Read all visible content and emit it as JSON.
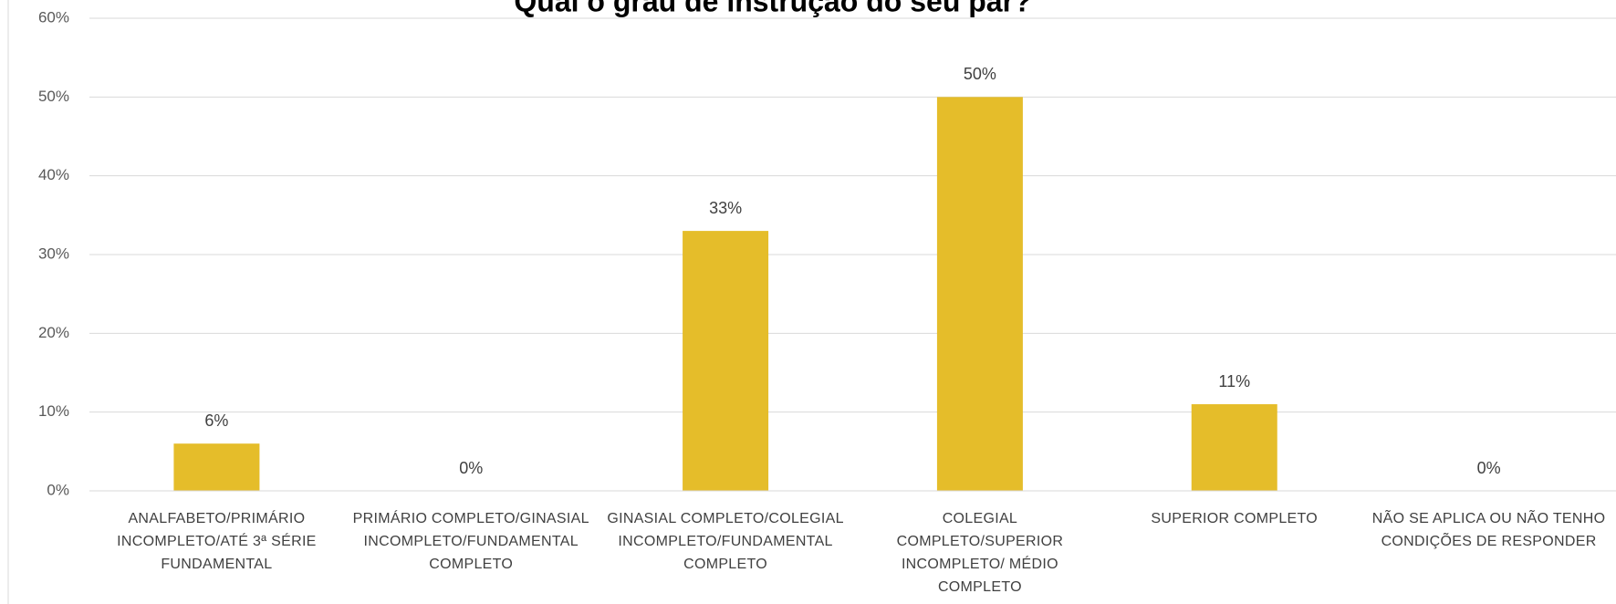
{
  "chart_data": {
    "type": "bar",
    "title": "Qual o grau de instrução do seu par?",
    "categories": [
      "ANALFABETO/PRIMÁRIO INCOMPLETO/ATÉ 3ª SÉRIE FUNDAMENTAL",
      "PRIMÁRIO COMPLETO/GINASIAL INCOMPLETO/FUNDAMENTAL COMPLETO",
      "GINASIAL COMPLETO/COLEGIAL INCOMPLETO/FUNDAMENTAL COMPLETO",
      "COLEGIAL COMPLETO/SUPERIOR INCOMPLETO/ MÉDIO COMPLETO",
      "SUPERIOR COMPLETO",
      "NÃO SE APLICA OU NÃO TENHO CONDIÇÕES DE RESPONDER"
    ],
    "values": [
      6,
      0,
      33,
      50,
      11,
      0
    ],
    "value_labels": [
      "6%",
      "0%",
      "33%",
      "50%",
      "11%",
      "0%"
    ],
    "color": "#e5bd2a",
    "ylim": [
      0,
      60
    ],
    "yticks": [
      {
        "value": 0,
        "label": "0%"
      },
      {
        "value": 10,
        "label": "10%"
      },
      {
        "value": 20,
        "label": "20%"
      },
      {
        "value": 30,
        "label": "30%"
      },
      {
        "value": 40,
        "label": "40%"
      },
      {
        "value": 50,
        "label": "50%"
      },
      {
        "value": 60,
        "label": "60%"
      }
    ],
    "grid": true
  }
}
